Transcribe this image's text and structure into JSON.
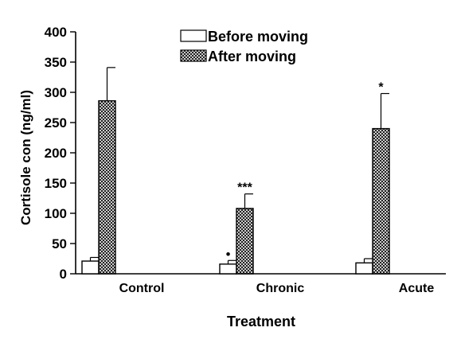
{
  "chart_data": {
    "type": "bar",
    "title": "",
    "xlabel": "Treatment",
    "ylabel": "Cortisole con (ng/ml)",
    "ylim": [
      0,
      400
    ],
    "yticks": [
      "0",
      "50",
      "100",
      "150",
      "200",
      "250",
      "300",
      "350",
      "400"
    ],
    "categories": [
      "Control",
      "Chronic",
      "Acute"
    ],
    "series": [
      {
        "name": "Before moving",
        "pattern": "open",
        "values": [
          21,
          16,
          18
        ],
        "errors": [
          6,
          6,
          7
        ]
      },
      {
        "name": "After moving",
        "pattern": "crosshatch",
        "values": [
          286,
          108,
          240
        ],
        "errors": [
          55,
          24,
          58
        ]
      }
    ],
    "annotations": [
      {
        "series": 0,
        "category": 1,
        "text": "•"
      },
      {
        "series": 1,
        "category": 1,
        "text": "***"
      },
      {
        "series": 1,
        "category": 2,
        "text": "*"
      }
    ],
    "legend": "top-center",
    "grid": false,
    "colors": {
      "stroke": "#000000",
      "hatch": "#000000",
      "before_fill": "#ffffff"
    }
  }
}
